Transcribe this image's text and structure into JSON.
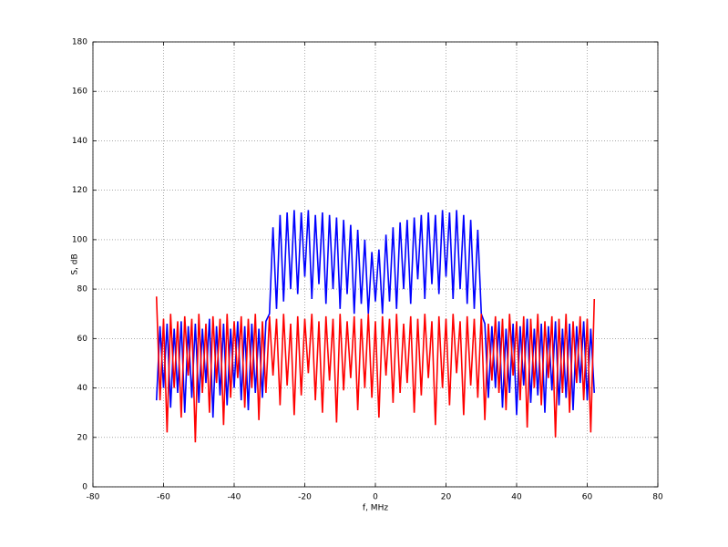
{
  "chart_data": {
    "type": "line",
    "xlabel": "f, MHz",
    "ylabel": "S, dB",
    "x": [
      -62,
      -61,
      -60,
      -59,
      -58,
      -57,
      -56,
      -55,
      -54,
      -53,
      -52,
      -51,
      -50,
      -49,
      -48,
      -47,
      -46,
      -45,
      -44,
      -43,
      -42,
      -41,
      -40,
      -39,
      -38,
      -37,
      -36,
      -35,
      -34,
      -33,
      -32,
      -31,
      -30,
      -29,
      -28,
      -27,
      -26,
      -25,
      -24,
      -23,
      -22,
      -21,
      -20,
      -19,
      -18,
      -17,
      -16,
      -15,
      -14,
      -13,
      -12,
      -11,
      -10,
      -9,
      -8,
      -7,
      -6,
      -5,
      -4,
      -3,
      -2,
      -1,
      0,
      1,
      2,
      3,
      4,
      5,
      6,
      7,
      8,
      9,
      10,
      11,
      12,
      13,
      14,
      15,
      16,
      17,
      18,
      19,
      20,
      21,
      22,
      23,
      24,
      25,
      26,
      27,
      28,
      29,
      30,
      31,
      32,
      33,
      34,
      35,
      36,
      37,
      38,
      39,
      40,
      41,
      42,
      43,
      44,
      45,
      46,
      47,
      48,
      49,
      50,
      51,
      52,
      53,
      54,
      55,
      56,
      57,
      58,
      59,
      60,
      61,
      62
    ],
    "series": [
      {
        "color": "#0000ff",
        "values": [
          35,
          65,
          40,
          66,
          32,
          64,
          38,
          67,
          30,
          65,
          36,
          66,
          34,
          64,
          42,
          68,
          28,
          65,
          37,
          66,
          33,
          64,
          40,
          67,
          35,
          65,
          31,
          66,
          38,
          64,
          36,
          67,
          70,
          105,
          72,
          110,
          75,
          111,
          80,
          112,
          78,
          111,
          85,
          112,
          76,
          110,
          82,
          111,
          74,
          110,
          80,
          109,
          72,
          108,
          78,
          106,
          70,
          104,
          74,
          100,
          70,
          95,
          75,
          96,
          70,
          102,
          75,
          105,
          72,
          107,
          80,
          108,
          74,
          109,
          84,
          110,
          76,
          111,
          82,
          110,
          78,
          112,
          85,
          111,
          76,
          112,
          80,
          110,
          74,
          108,
          72,
          104,
          70,
          66,
          36,
          65,
          40,
          67,
          32,
          64,
          38,
          66,
          29,
          65,
          41,
          68,
          34,
          64,
          37,
          66,
          30,
          65,
          39,
          67,
          33,
          64,
          36,
          66,
          31,
          65,
          42,
          67,
          35,
          64,
          38
        ]
      },
      {
        "color": "#ff0000",
        "values": [
          77,
          35,
          68,
          22,
          70,
          40,
          67,
          28,
          69,
          45,
          68,
          18,
          70,
          38,
          66,
          30,
          69,
          42,
          68,
          25,
          70,
          36,
          67,
          44,
          69,
          32,
          68,
          40,
          70,
          27,
          67,
          38,
          69,
          45,
          68,
          33,
          70,
          41,
          66,
          29,
          69,
          37,
          68,
          46,
          70,
          35,
          67,
          30,
          69,
          43,
          68,
          26,
          70,
          39,
          67,
          44,
          69,
          31,
          68,
          40,
          70,
          36,
          67,
          28,
          69,
          45,
          68,
          34,
          70,
          38,
          66,
          42,
          69,
          30,
          68,
          37,
          70,
          44,
          67,
          25,
          69,
          40,
          68,
          33,
          70,
          46,
          67,
          29,
          69,
          41,
          68,
          36,
          70,
          27,
          66,
          43,
          69,
          38,
          68,
          31,
          70,
          45,
          67,
          35,
          69,
          24,
          68,
          40,
          70,
          33,
          67,
          44,
          69,
          20,
          68,
          38,
          70,
          30,
          67,
          42,
          69,
          35,
          68,
          22,
          76
        ]
      }
    ],
    "xlim": [
      -80,
      80
    ],
    "xticks": [
      -80,
      -60,
      -40,
      -20,
      0,
      20,
      40,
      60,
      80
    ],
    "ylim": [
      0,
      180
    ],
    "yticks": [
      0,
      20,
      40,
      60,
      80,
      100,
      120,
      140,
      160,
      180
    ],
    "grid": true
  }
}
